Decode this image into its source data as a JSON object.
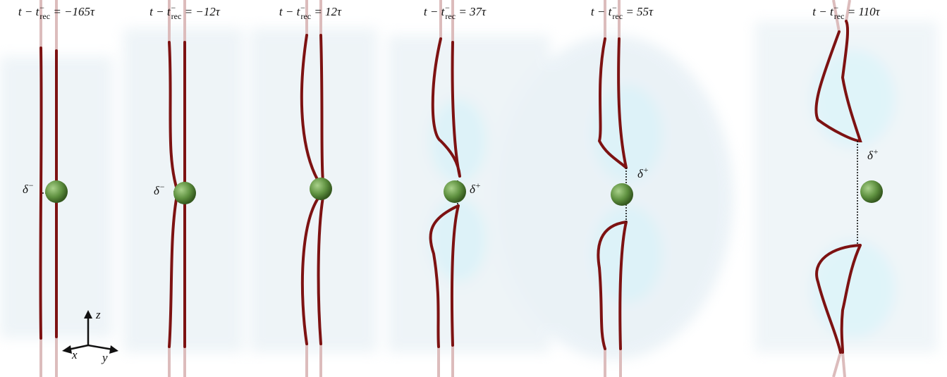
{
  "panels": [
    {
      "title": {
        "lhs": "t − t",
        "sup": "−",
        "sub": "rec",
        "rhs": " = −165τ"
      },
      "delta": {
        "base": "δ",
        "sup": "−"
      }
    },
    {
      "title": {
        "lhs": "t − t",
        "sup": "−",
        "sub": "rec",
        "rhs": " = −12τ"
      },
      "delta": {
        "base": "δ",
        "sup": "−"
      }
    },
    {
      "title": {
        "lhs": "t − t",
        "sup": "−",
        "sub": "rec",
        "rhs": " = 12τ"
      }
    },
    {
      "title": {
        "lhs": "t − t",
        "sup": "−",
        "sub": "rec",
        "rhs": " = 37τ"
      },
      "delta": {
        "base": "δ",
        "sup": "+"
      }
    },
    {
      "title": {
        "lhs": "t − t",
        "sup": "−",
        "sub": "rec",
        "rhs": " = 55τ"
      },
      "delta": {
        "base": "δ",
        "sup": "+"
      }
    },
    {
      "title": {
        "lhs": "t − t",
        "sup": "−",
        "sub": "rec",
        "rhs": " = 110τ"
      },
      "delta": {
        "base": "δ",
        "sup": "+"
      }
    }
  ],
  "axes": {
    "x": "x",
    "y": "y",
    "z": "z"
  }
}
